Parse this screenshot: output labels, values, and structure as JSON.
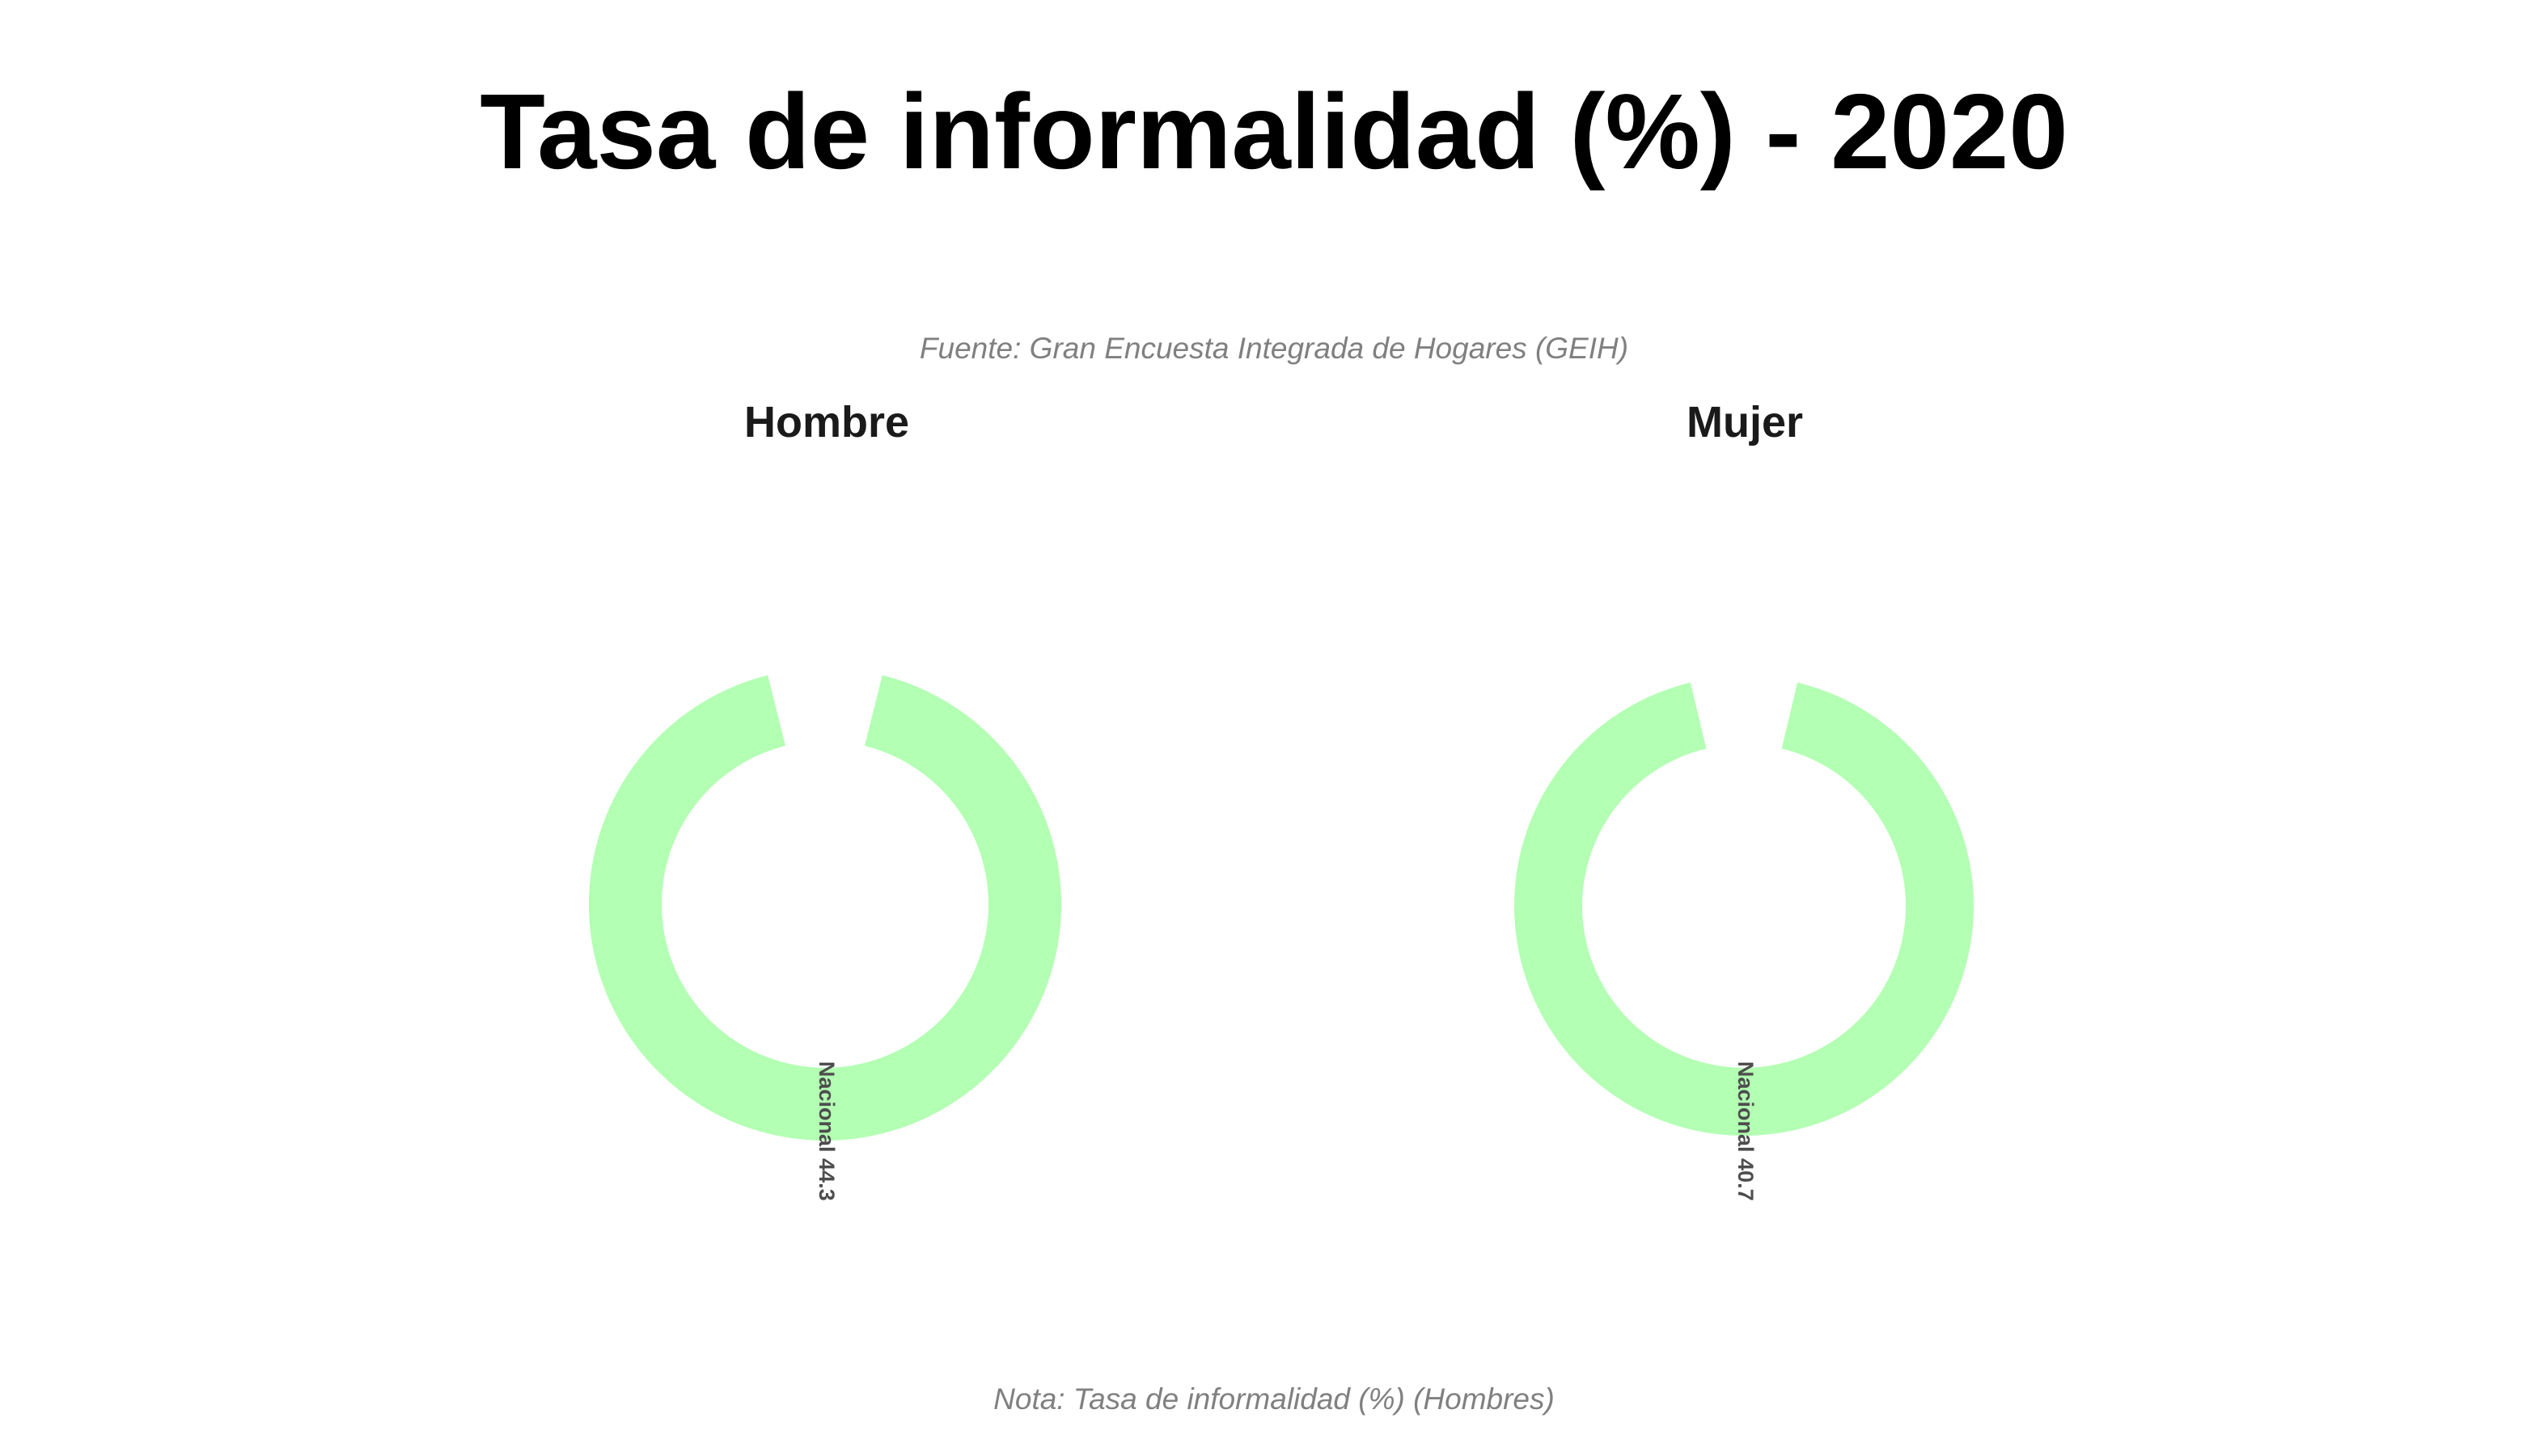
{
  "chart_data": {
    "type": "pie",
    "title": "Tasa de informalidad (%) - 2020",
    "subtitle": "Fuente: Gran Encuesta Integrada de Hogares (GEIH)",
    "caption": "Nota: Tasa de informalidad (%) (Hombres)",
    "facets": [
      {
        "name": "Hombre",
        "categories": [
          "Nacional"
        ],
        "values": [
          44.3
        ],
        "labels": [
          "Nacional 44.3"
        ]
      },
      {
        "name": "Mujer",
        "categories": [
          "Nacional"
        ],
        "values": [
          40.7
        ],
        "labels": [
          "Nacional 40.7"
        ]
      }
    ],
    "colors": {
      "ring": "#b3ffb3"
    }
  }
}
